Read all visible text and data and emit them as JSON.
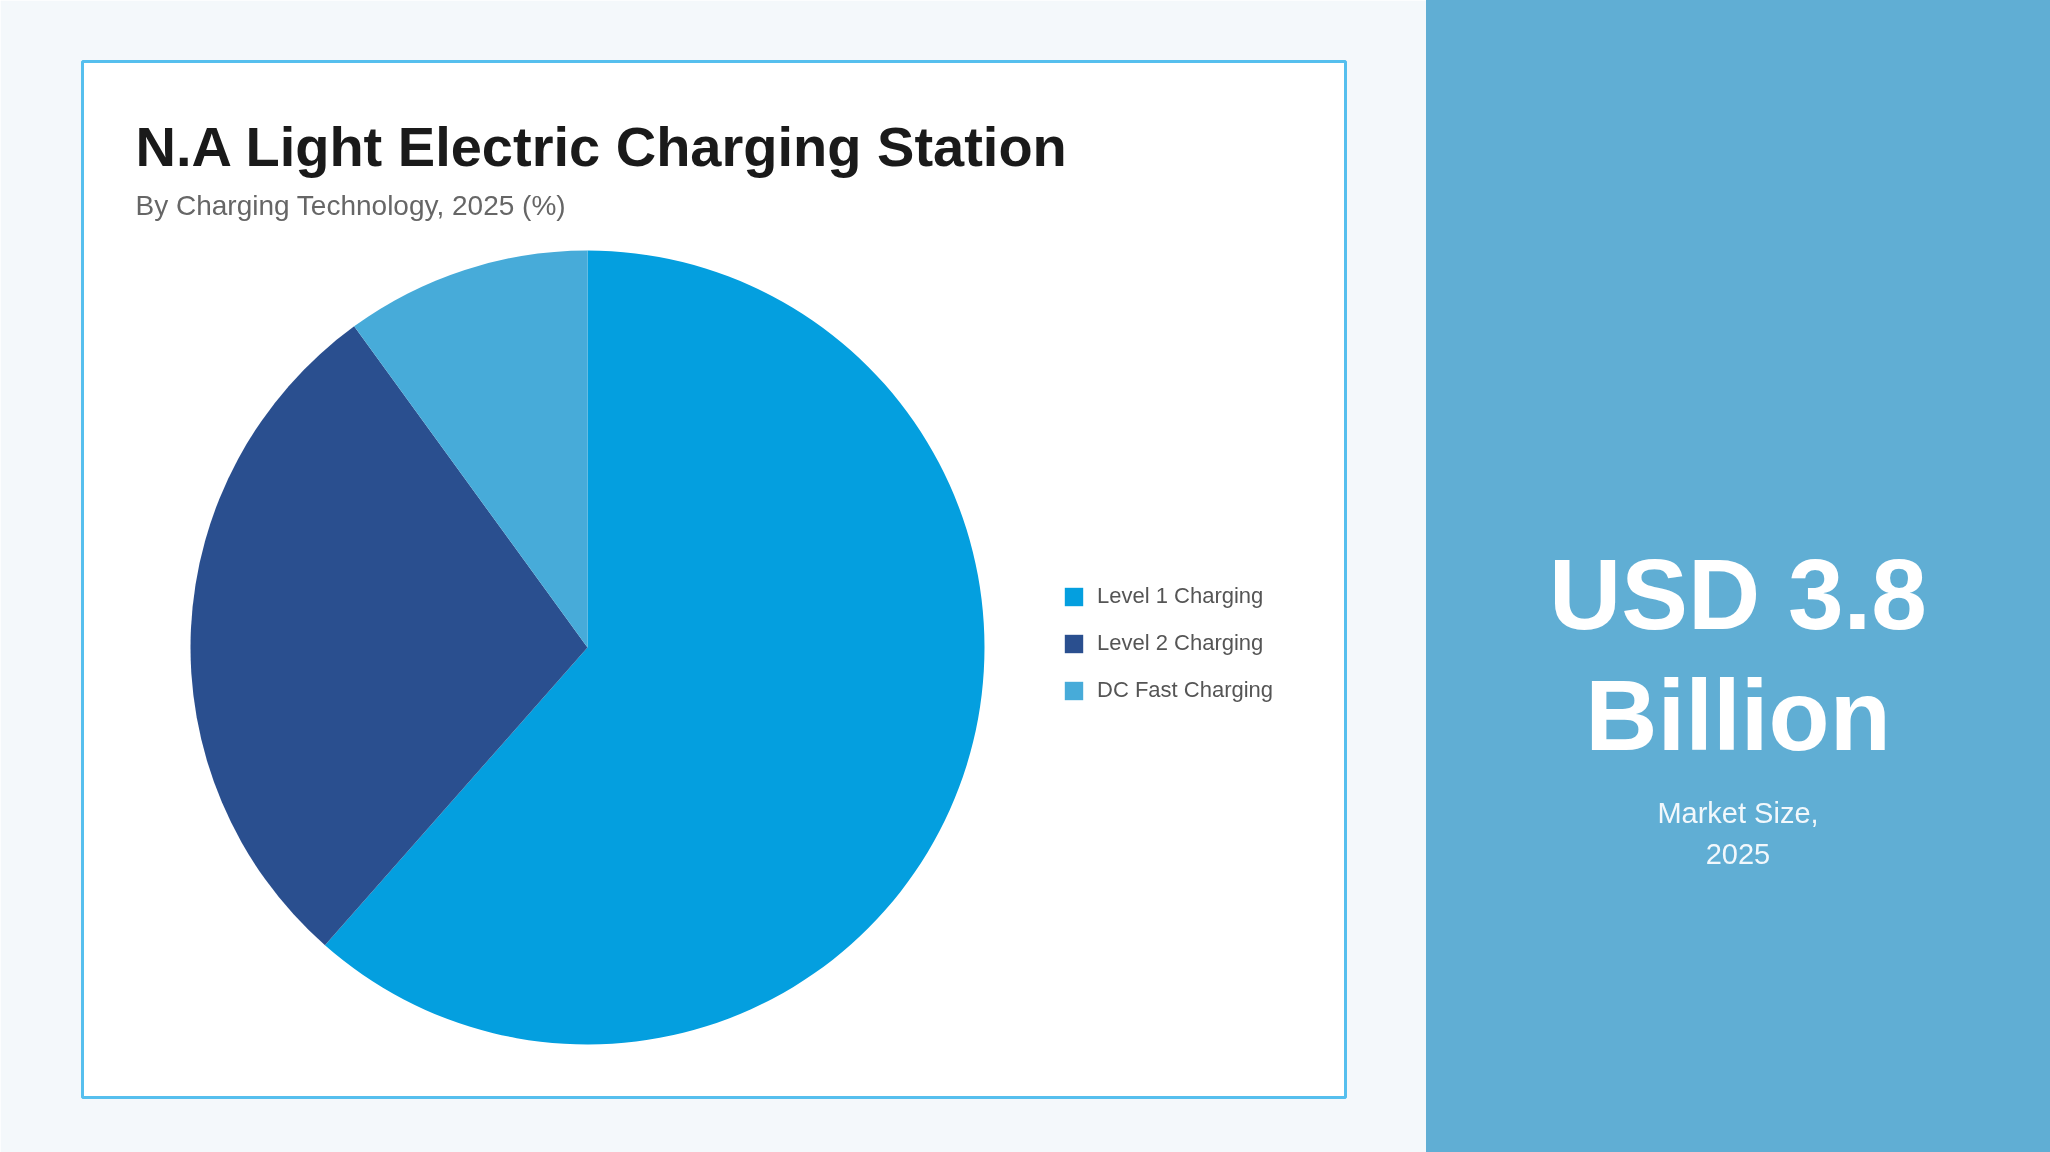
{
  "chart_data": {
    "type": "pie",
    "title": "N.A Light Electric Charging Station",
    "subtitle": "By Charging Technology, 2025 (%)",
    "categories": [
      "Level 1 Charging",
      "Level 2 Charging",
      "DC Fast Charging"
    ],
    "values": [
      61.5,
      28.5,
      10
    ],
    "colors": [
      "#049fdf",
      "#2a4f8f",
      "#47abd9"
    ],
    "legend": "right",
    "annotations": [
      "USD 3.8 Billion",
      "Market Size, 2025"
    ]
  }
}
